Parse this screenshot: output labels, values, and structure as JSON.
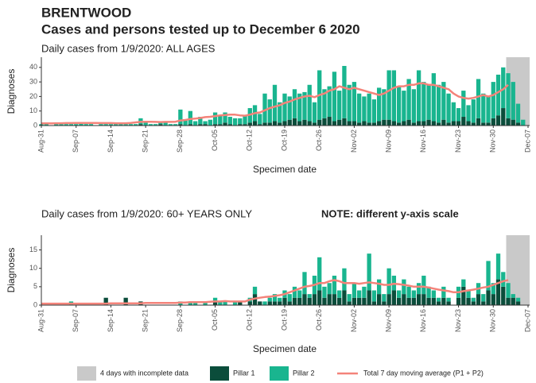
{
  "title": "BRENTWOOD",
  "subtitle": "Cases and persons tested up to December  6 2020",
  "incomplete": {
    "name": "4 days with incomplete data",
    "color": "#c9c9c9",
    "days": 4
  },
  "chart_data": [
    {
      "type": "bar",
      "stacked": true,
      "title": "Daily cases from 1/9/2020: ALL AGES",
      "y_label": "Diagnoses",
      "x_label": "Specimen date",
      "ylim": [
        0,
        47
      ],
      "yticks": [
        0,
        10,
        20,
        30,
        40
      ],
      "categories": [
        "Aug-31",
        null,
        null,
        null,
        null,
        null,
        null,
        "Sep-07",
        null,
        null,
        null,
        null,
        null,
        null,
        "Sep-14",
        null,
        null,
        null,
        null,
        null,
        null,
        "Sep-21",
        null,
        null,
        null,
        null,
        null,
        null,
        "Sep-28",
        null,
        null,
        null,
        null,
        null,
        null,
        "Oct-05",
        null,
        null,
        null,
        null,
        null,
        null,
        "Oct-12",
        null,
        null,
        null,
        null,
        null,
        null,
        "Oct-19",
        null,
        null,
        null,
        null,
        null,
        null,
        "Oct-26",
        null,
        null,
        null,
        null,
        null,
        null,
        "Nov-02",
        null,
        null,
        null,
        null,
        null,
        null,
        "Nov-09",
        null,
        null,
        null,
        null,
        null,
        null,
        "Nov-16",
        null,
        null,
        null,
        null,
        null,
        null,
        "Nov-23",
        null,
        null,
        null,
        null,
        null,
        null,
        "Nov-30",
        null,
        null,
        null,
        null,
        null,
        null,
        "Dec-07"
      ],
      "series": [
        {
          "name": "Pillar 1",
          "color": "#0b4d3b",
          "values": [
            0,
            0,
            0,
            0,
            0,
            0,
            0,
            0,
            0,
            0,
            0,
            0,
            0,
            0,
            0,
            0,
            0,
            0,
            0,
            0,
            1,
            0,
            0,
            0,
            1,
            0,
            0,
            0,
            1,
            0,
            1,
            0,
            1,
            1,
            0,
            1,
            1,
            2,
            1,
            0,
            1,
            1,
            2,
            3,
            1,
            2,
            2,
            3,
            2,
            3,
            4,
            5,
            3,
            4,
            3,
            2,
            4,
            5,
            6,
            3,
            4,
            5,
            3,
            3,
            2,
            3,
            2,
            2,
            3,
            4,
            4,
            3,
            2,
            3,
            4,
            2,
            3,
            3,
            4,
            3,
            2,
            4,
            2,
            3,
            3,
            6,
            3,
            2,
            5,
            2,
            2,
            5,
            7,
            12,
            5,
            4,
            2,
            0,
            null
          ]
        },
        {
          "name": "Pillar 2",
          "color": "#19b58f",
          "values": [
            1,
            1,
            0,
            1,
            1,
            1,
            1,
            1,
            2,
            1,
            1,
            0,
            1,
            1,
            1,
            1,
            1,
            1,
            1,
            1,
            4,
            3,
            1,
            1,
            2,
            3,
            1,
            1,
            10,
            4,
            9,
            3,
            5,
            2,
            4,
            8,
            6,
            7,
            5,
            5,
            4,
            6,
            10,
            11,
            7,
            20,
            16,
            25,
            14,
            19,
            16,
            20,
            19,
            19,
            25,
            14,
            34,
            20,
            21,
            34,
            20,
            36,
            25,
            27,
            20,
            17,
            20,
            16,
            23,
            21,
            34,
            35,
            25,
            21,
            28,
            23,
            35,
            27,
            24,
            33,
            26,
            26,
            20,
            13,
            9,
            18,
            11,
            16,
            27,
            20,
            18,
            25,
            28,
            28,
            31,
            26,
            13,
            4,
            null
          ]
        },
        {
          "name": "Total 7 day moving average (P1 + P2)",
          "type": "line",
          "color": "#f4837a",
          "values": [
            1.5,
            1.5,
            1.5,
            1.6,
            1.6,
            1.7,
            1.7,
            1.8,
            1.8,
            1.8,
            1.8,
            1.8,
            1.7,
            1.7,
            1.7,
            1.6,
            1.6,
            1.6,
            1.8,
            2.2,
            2.5,
            2.6,
            2.6,
            2.5,
            2.4,
            2.5,
            2.5,
            2.6,
            3.5,
            3.8,
            4.5,
            4.8,
            5.2,
            5.8,
            6,
            6.5,
            7,
            7.2,
            7.5,
            7.5,
            7,
            6.8,
            7.5,
            8.5,
            9,
            10.5,
            12,
            13,
            14,
            15.5,
            16.5,
            18,
            19,
            20,
            20.5,
            19.5,
            21,
            22,
            24,
            25,
            27,
            26,
            25,
            26,
            25,
            24,
            23,
            22,
            21,
            22,
            24,
            26,
            27,
            27,
            28,
            28,
            29,
            29,
            28,
            28,
            27,
            26,
            25,
            22,
            20,
            19,
            18.5,
            19,
            20,
            21,
            20,
            21,
            23,
            25,
            28,
            null,
            null,
            null,
            null
          ]
        }
      ]
    },
    {
      "type": "bar",
      "stacked": true,
      "title": "Daily cases from 1/9/2020: 60+ YEARS ONLY",
      "note": "NOTE: different y-axis scale",
      "y_label": "Diagnoses",
      "x_label": "Specimen date",
      "ylim": [
        0,
        19
      ],
      "yticks": [
        0,
        5,
        10,
        15
      ],
      "categories": [
        "Aug-31",
        null,
        null,
        null,
        null,
        null,
        null,
        "Sep-07",
        null,
        null,
        null,
        null,
        null,
        null,
        "Sep-14",
        null,
        null,
        null,
        null,
        null,
        null,
        "Sep-21",
        null,
        null,
        null,
        null,
        null,
        null,
        "Sep-28",
        null,
        null,
        null,
        null,
        null,
        null,
        "Oct-05",
        null,
        null,
        null,
        null,
        null,
        null,
        "Oct-12",
        null,
        null,
        null,
        null,
        null,
        null,
        "Oct-19",
        null,
        null,
        null,
        null,
        null,
        null,
        "Oct-26",
        null,
        null,
        null,
        null,
        null,
        null,
        "Nov-02",
        null,
        null,
        null,
        null,
        null,
        null,
        "Nov-09",
        null,
        null,
        null,
        null,
        null,
        null,
        "Nov-16",
        null,
        null,
        null,
        null,
        null,
        null,
        "Nov-23",
        null,
        null,
        null,
        null,
        null,
        null,
        "Nov-30",
        null,
        null,
        null,
        null,
        null,
        null,
        "Dec-07"
      ],
      "series": [
        {
          "name": "Pillar 1",
          "color": "#0b4d3b",
          "values": [
            0,
            0,
            0,
            0,
            0,
            0,
            0,
            0,
            0,
            0,
            0,
            0,
            0,
            2,
            0,
            0,
            0,
            2,
            0,
            0,
            1,
            0,
            0,
            0,
            0,
            0,
            0,
            0,
            0,
            0,
            0,
            0,
            0,
            0,
            0,
            1,
            0,
            0,
            0,
            0,
            1,
            0,
            1,
            3,
            1,
            0,
            1,
            1,
            1,
            2,
            1,
            2,
            2,
            3,
            2,
            3,
            4,
            2,
            3,
            3,
            2,
            4,
            1,
            2,
            2,
            2,
            4,
            1,
            3,
            1,
            3,
            4,
            2,
            3,
            2,
            2,
            3,
            3,
            2,
            2,
            1,
            2,
            1,
            0,
            2,
            5,
            2,
            1,
            3,
            1,
            4,
            3,
            7,
            5,
            2,
            2,
            1,
            0,
            null
          ]
        },
        {
          "name": "Pillar 2",
          "color": "#19b58f",
          "values": [
            0,
            0,
            0,
            0,
            0,
            0,
            1,
            0,
            0,
            0,
            0,
            0,
            0,
            0,
            0,
            0,
            0,
            0,
            0,
            0,
            0,
            0,
            0,
            0,
            0,
            0,
            0,
            0,
            1,
            0,
            1,
            1,
            0,
            1,
            0,
            1,
            1,
            1,
            0,
            1,
            0,
            0,
            1,
            2,
            0,
            1,
            1,
            2,
            1,
            2,
            2,
            3,
            2,
            6,
            1,
            5,
            9,
            3,
            3,
            5,
            2,
            6,
            2,
            4,
            2,
            3,
            10,
            3,
            4,
            2,
            7,
            4,
            2,
            4,
            3,
            2,
            3,
            5,
            3,
            2,
            1,
            3,
            1,
            0,
            3,
            2,
            2,
            1,
            3,
            2,
            8,
            3,
            7,
            4,
            4,
            1,
            1,
            0,
            null
          ]
        },
        {
          "name": "Total 7 day moving average (P1 + P2)",
          "type": "line",
          "color": "#f4837a",
          "values": [
            0.4,
            0.4,
            0.4,
            0.4,
            0.4,
            0.4,
            0.4,
            0.4,
            0.4,
            0.4,
            0.4,
            0.4,
            0.4,
            0.4,
            0.5,
            0.5,
            0.5,
            0.5,
            0.5,
            0.5,
            0.5,
            0.6,
            0.6,
            0.6,
            0.6,
            0.6,
            0.6,
            0.6,
            0.7,
            0.7,
            0.8,
            0.8,
            0.8,
            0.8,
            0.9,
            1,
            1,
            1.1,
            1,
            1,
            1,
            1,
            1.5,
            1.8,
            2,
            2.2,
            2.3,
            2.5,
            2.7,
            3,
            3.5,
            4,
            4.5,
            5,
            5.2,
            5.5,
            6,
            6,
            6.5,
            6.8,
            6.5,
            6,
            6,
            6,
            5.8,
            6,
            6.2,
            6,
            5.8,
            5.5,
            5.5,
            5.8,
            5.7,
            5.5,
            5.3,
            5,
            5,
            5,
            4.8,
            4.5,
            4.2,
            4,
            3.8,
            3.5,
            3.5,
            3.8,
            4,
            4.2,
            4.5,
            4.8,
            5,
            5.5,
            6,
            6.5,
            6.8,
            null,
            null,
            null,
            null
          ]
        }
      ]
    }
  ]
}
